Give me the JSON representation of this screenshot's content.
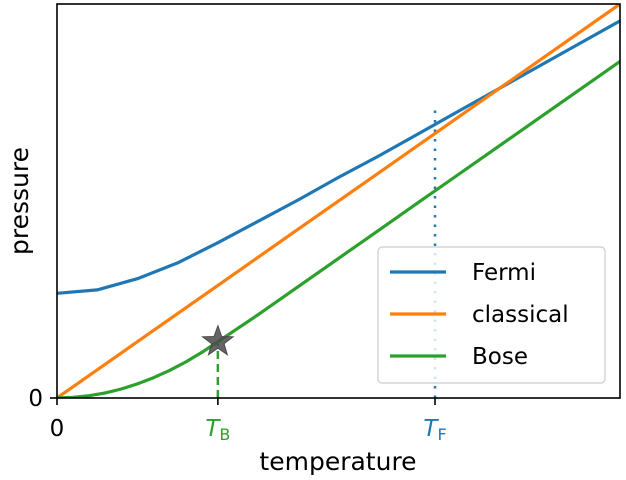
{
  "chart_data": {
    "type": "line",
    "xlabel": "temperature",
    "ylabel": "pressure",
    "xlim": [
      0,
      3.5
    ],
    "ylim": [
      0,
      3.5
    ],
    "x_ticks": [
      {
        "value": 0,
        "label": "0",
        "color": "#000000"
      },
      {
        "value": 1,
        "label": "T",
        "sub": "B",
        "color": "#2ca02c"
      },
      {
        "value": 2.35,
        "label": "T",
        "sub": "F",
        "color": "#1f77b4"
      }
    ],
    "y_ticks": [
      {
        "value": 0,
        "label": "0"
      }
    ],
    "series": [
      {
        "name": "Fermi",
        "color": "#1f77b4",
        "x": [
          0,
          0.25,
          0.5,
          0.75,
          1,
          1.25,
          1.5,
          1.75,
          2,
          2.25,
          2.5,
          2.75,
          3,
          3.25,
          3.5
        ],
        "y": [
          0.93,
          0.96,
          1.06,
          1.2,
          1.38,
          1.57,
          1.76,
          1.96,
          2.15,
          2.35,
          2.55,
          2.75,
          2.95,
          3.15,
          3.35
        ]
      },
      {
        "name": "classical",
        "color": "#ff7f0e",
        "x": [
          0,
          0.5,
          1,
          1.5,
          2,
          2.5,
          3,
          3.5
        ],
        "y": [
          0,
          0.5,
          1,
          1.5,
          2,
          2.5,
          3,
          3.5
        ]
      },
      {
        "name": "Bose",
        "color": "#2ca02c",
        "x": [
          0,
          0.1,
          0.2,
          0.3,
          0.4,
          0.5,
          0.6,
          0.7,
          0.8,
          0.9,
          1,
          1.25,
          1.5,
          1.75,
          2,
          2.25,
          2.5,
          2.75,
          3,
          3.25,
          3.5
        ],
        "y": [
          0,
          0.005,
          0.02,
          0.045,
          0.08,
          0.125,
          0.18,
          0.245,
          0.32,
          0.405,
          0.5,
          0.74,
          0.99,
          1.24,
          1.49,
          1.74,
          1.99,
          2.24,
          2.49,
          2.74,
          2.99
        ]
      }
    ],
    "markers": [
      {
        "type": "star",
        "x": 1,
        "y": 0.5,
        "color": "#4a4a4a"
      }
    ],
    "reference_lines": [
      {
        "x": 1,
        "y_top": 0.5,
        "style": "dashed",
        "color": "#2ca02c"
      },
      {
        "x": 2.35,
        "y_top": 2.6,
        "style": "dotted",
        "color": "#1f77b4"
      }
    ],
    "legend": {
      "position": "bottom-right",
      "entries": [
        {
          "name": "Fermi",
          "color": "#1f77b4"
        },
        {
          "name": "classical",
          "color": "#ff7f0e"
        },
        {
          "name": "Bose",
          "color": "#2ca02c"
        }
      ]
    },
    "grid": false
  }
}
